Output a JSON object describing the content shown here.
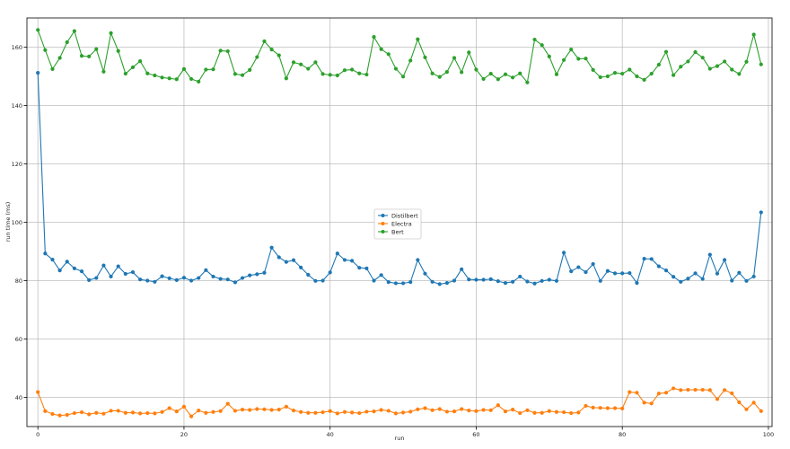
{
  "chart_data": {
    "type": "line",
    "title": "",
    "xlabel": "run",
    "ylabel": "run time (ms)",
    "xlim": [
      -1.5,
      100.5
    ],
    "ylim": [
      30,
      170
    ],
    "xticks": [
      0,
      20,
      40,
      60,
      80,
      100
    ],
    "yticks": [
      40,
      60,
      80,
      100,
      120,
      140,
      160
    ],
    "grid": true,
    "legend_position": "center",
    "x": [
      0,
      1,
      2,
      3,
      4,
      5,
      6,
      7,
      8,
      9,
      10,
      11,
      12,
      13,
      14,
      15,
      16,
      17,
      18,
      19,
      20,
      21,
      22,
      23,
      24,
      25,
      26,
      27,
      28,
      29,
      30,
      31,
      32,
      33,
      34,
      35,
      36,
      37,
      38,
      39,
      40,
      41,
      42,
      43,
      44,
      45,
      46,
      47,
      48,
      49,
      50,
      51,
      52,
      53,
      54,
      55,
      56,
      57,
      58,
      59,
      60,
      61,
      62,
      63,
      64,
      65,
      66,
      67,
      68,
      69,
      70,
      71,
      72,
      73,
      74,
      75,
      76,
      77,
      78,
      79,
      80,
      81,
      82,
      83,
      84,
      85,
      86,
      87,
      88,
      89,
      90,
      91,
      92,
      93,
      94,
      95,
      96,
      97,
      98,
      99
    ],
    "series": [
      {
        "name": "Distilbert",
        "color": "#1f77b4",
        "values": [
          151.2,
          89.3,
          87.2,
          83.5,
          86.5,
          84.2,
          83.2,
          80.2,
          80.9,
          85.2,
          81.4,
          84.9,
          82.3,
          82.9,
          80.4,
          80.0,
          79.6,
          81.5,
          80.8,
          80.2,
          81.0,
          80.0,
          80.9,
          83.6,
          81.4,
          80.6,
          80.4,
          79.4,
          80.9,
          81.8,
          82.2,
          82.7,
          91.3,
          88.0,
          86.4,
          87.0,
          84.5,
          82.0,
          79.9,
          80.0,
          82.8,
          89.3,
          87.1,
          86.8,
          84.4,
          84.2,
          80.0,
          81.9,
          79.5,
          79.1,
          79.1,
          79.5,
          87.1,
          82.4,
          79.6,
          78.8,
          79.2,
          80.0,
          83.9,
          80.4,
          80.3,
          80.3,
          80.5,
          79.8,
          79.2,
          79.6,
          81.4,
          79.7,
          79.0,
          79.9,
          80.3,
          79.9,
          89.6,
          83.2,
          84.6,
          82.9,
          85.7,
          79.9,
          83.3,
          82.5,
          82.5,
          82.6,
          79.2,
          87.5,
          87.4,
          84.9,
          83.5,
          81.3,
          79.6,
          80.7,
          82.5,
          80.6,
          88.9,
          82.4,
          87.1,
          80.0,
          82.7,
          79.9,
          81.4,
          103.4
        ]
      },
      {
        "name": "Electra",
        "color": "#ff7f0e",
        "values": [
          41.8,
          35.3,
          34.3,
          33.8,
          34.0,
          34.6,
          34.9,
          34.2,
          34.7,
          34.4,
          35.4,
          35.4,
          34.7,
          34.8,
          34.5,
          34.6,
          34.5,
          35.0,
          36.3,
          35.2,
          36.8,
          33.5,
          35.5,
          34.7,
          35.0,
          35.3,
          37.8,
          35.4,
          35.8,
          35.7,
          36.0,
          35.9,
          35.7,
          35.8,
          36.8,
          35.5,
          35.0,
          34.7,
          34.7,
          34.9,
          35.3,
          34.5,
          35.0,
          34.8,
          34.6,
          35.1,
          35.2,
          35.7,
          35.4,
          34.5,
          34.8,
          35.1,
          35.9,
          36.3,
          35.6,
          36.0,
          35.1,
          35.2,
          36.0,
          35.5,
          35.3,
          35.7,
          35.6,
          37.3,
          35.2,
          35.8,
          34.6,
          35.6,
          34.7,
          34.7,
          35.3,
          35.0,
          34.9,
          34.6,
          34.8,
          37.1,
          36.5,
          36.4,
          36.3,
          36.3,
          36.2,
          41.8,
          41.6,
          38.2,
          37.9,
          41.3,
          41.6,
          43.1,
          42.5,
          42.6,
          42.6,
          42.6,
          42.5,
          39.4,
          42.5,
          41.4,
          38.3,
          35.9,
          38.2,
          35.3
        ]
      },
      {
        "name": "Bert",
        "color": "#2ca02c",
        "values": [
          165.9,
          159.0,
          152.5,
          156.3,
          161.7,
          165.5,
          157.0,
          156.8,
          159.3,
          151.6,
          164.8,
          158.7,
          150.9,
          153.1,
          155.2,
          151.0,
          150.3,
          149.6,
          149.3,
          149.0,
          152.5,
          149.1,
          148.2,
          152.3,
          152.4,
          158.8,
          158.6,
          150.8,
          150.4,
          152.2,
          156.6,
          162.0,
          159.2,
          157.2,
          149.3,
          154.8,
          154.1,
          152.6,
          154.8,
          150.8,
          150.5,
          150.3,
          152.1,
          152.3,
          151.0,
          150.6,
          163.5,
          159.3,
          157.6,
          152.6,
          149.9,
          155.4,
          162.7,
          156.5,
          151.0,
          149.8,
          151.5,
          156.3,
          151.4,
          158.2,
          152.3,
          149.1,
          150.9,
          149.0,
          150.7,
          149.6,
          151.0,
          147.9,
          162.6,
          160.7,
          156.8,
          150.7,
          155.6,
          159.2,
          156.0,
          156.1,
          152.2,
          149.7,
          150.0,
          151.2,
          150.9,
          152.3,
          150.0,
          148.8,
          150.9,
          154.0,
          158.4,
          150.4,
          153.3,
          155.1,
          158.3,
          156.4,
          152.6,
          153.5,
          155.1,
          152.3,
          150.8,
          155.0,
          164.3,
          154.1
        ]
      }
    ]
  }
}
